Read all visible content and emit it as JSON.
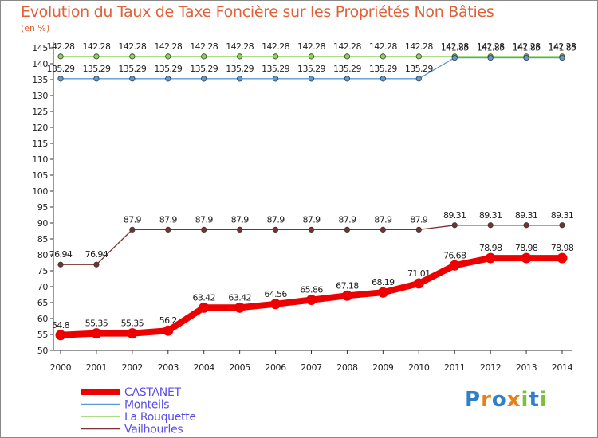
{
  "chart_data": {
    "type": "line",
    "title": "Evolution du Taux de Taxe Foncière sur les Propriétés Non Bâties",
    "unit_label": "(en %)",
    "x": [
      "2000",
      "2001",
      "2002",
      "2003",
      "2004",
      "2005",
      "2006",
      "2007",
      "2008",
      "2009",
      "2010",
      "2011",
      "2012",
      "2013",
      "2014"
    ],
    "ylim": [
      50,
      145
    ],
    "yticks": [
      50,
      55,
      60,
      65,
      70,
      75,
      80,
      85,
      90,
      95,
      100,
      105,
      110,
      115,
      120,
      125,
      130,
      135,
      140,
      145
    ],
    "grid": false,
    "legend_position": "bottom-left",
    "series": [
      {
        "name": "CASTANET",
        "color": "#ee0000",
        "values": [
          54.8,
          55.35,
          55.35,
          56.2,
          63.42,
          63.42,
          64.56,
          65.86,
          67.18,
          68.19,
          71.01,
          76.68,
          78.98,
          78.98,
          78.98
        ],
        "labels": [
          "54.8",
          "55.35",
          "55.35",
          "56.2",
          "63.42",
          "63.42",
          "64.56",
          "65.86",
          "67.18",
          "68.19",
          "71.01",
          "76.68",
          "78.98",
          "78.98",
          "78.98"
        ]
      },
      {
        "name": "Monteils",
        "color": "#5b9bd5",
        "values": [
          135.29,
          135.29,
          135.29,
          135.29,
          135.29,
          135.29,
          135.29,
          135.29,
          135.29,
          135.29,
          135.29,
          141.85,
          141.85,
          141.85,
          141.85
        ],
        "labels": [
          "135.29",
          "135.29",
          "135.29",
          "135.29",
          "135.29",
          "135.29",
          "135.29",
          "135.29",
          "135.29",
          "135.29",
          "135.29",
          "141.85",
          "141.85",
          "141.85",
          "141.85"
        ]
      },
      {
        "name": "La Rouquette",
        "color": "#8fd25a",
        "values": [
          142.28,
          142.28,
          142.28,
          142.28,
          142.28,
          142.28,
          142.28,
          142.28,
          142.28,
          142.28,
          142.28,
          142.28,
          142.28,
          142.28,
          142.28
        ],
        "labels": [
          "142.28",
          "142.28",
          "142.28",
          "142.28",
          "142.28",
          "142.28",
          "142.28",
          "142.28",
          "142.28",
          "142.28",
          "142.28",
          "142.28",
          "142.28",
          "142.28",
          "142.28"
        ]
      },
      {
        "name": "Vailhourles",
        "color": "#7a3030",
        "values": [
          76.94,
          76.94,
          87.9,
          87.9,
          87.9,
          87.9,
          87.9,
          87.9,
          87.9,
          87.9,
          87.9,
          89.31,
          89.31,
          89.31,
          89.31
        ],
        "labels": [
          "76.94",
          "76.94",
          "87.9",
          "87.9",
          "87.9",
          "87.9",
          "87.9",
          "87.9",
          "87.9",
          "87.9",
          "87.9",
          "89.31",
          "89.31",
          "89.31",
          "89.31"
        ]
      }
    ]
  },
  "brand": {
    "logo_letters": [
      "P",
      "r",
      "o",
      "x",
      "i",
      "t",
      "i"
    ],
    "logo_colors": [
      "#2f80c8",
      "#e8801a",
      "#2f80c8",
      "#e8801a",
      "#7cbf3a",
      "#2f80c8",
      "#7cbf3a"
    ]
  }
}
